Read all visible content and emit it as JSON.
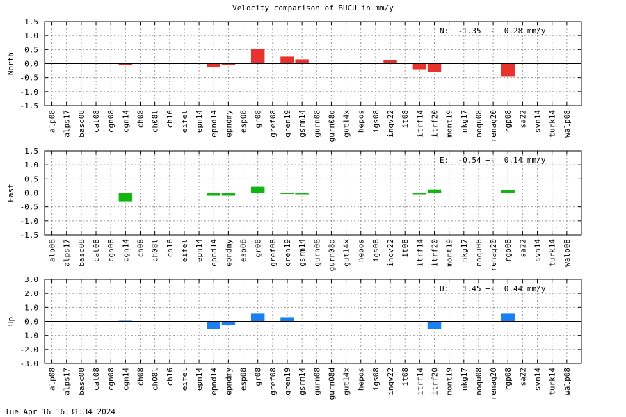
{
  "title": "Velocity comparison of BUCU in mm/y",
  "footer": "Tue Apr 16 16:31:34 2024",
  "chart_data": [
    {
      "type": "bar",
      "ylabel": "North",
      "color": "#e8322e",
      "ylim": [
        -1.5,
        1.5
      ],
      "yticks": [
        "1.5",
        "1.0",
        "0.5",
        "0.0",
        "-0.5",
        "-1.0",
        "-1.5"
      ],
      "annotation": "N:  -1.35 +-  0.28 mm/y",
      "grid": true,
      "categories": [
        "alp08",
        "alps17",
        "basc08",
        "cat08",
        "cgn08",
        "cgn14",
        "ch08",
        "ch08l",
        "ch16",
        "eifel",
        "epn14",
        "epnd14",
        "epndmy",
        "esp08",
        "gr08",
        "gref08",
        "gren19",
        "gsrm14",
        "gurn08",
        "gurn08d",
        "gut14x",
        "hepos",
        "igs08",
        "ingv22",
        "it08",
        "itrf14",
        "itrf20",
        "mont19",
        "nkg17",
        "noqu08",
        "renag20",
        "rgp08",
        "sa22",
        "svn14",
        "turk14",
        "walp08"
      ],
      "values": [
        0,
        0,
        0,
        0,
        0,
        -0.02,
        0,
        0,
        0,
        0,
        0,
        -0.12,
        -0.05,
        0,
        0.52,
        0,
        0.25,
        0.15,
        0,
        0,
        0,
        0,
        0,
        0.12,
        0,
        -0.2,
        -0.3,
        0,
        0,
        0,
        0,
        -0.47,
        0,
        0,
        0,
        0
      ]
    },
    {
      "type": "bar",
      "ylabel": "East",
      "color": "#12b512",
      "ylim": [
        -1.5,
        1.5
      ],
      "yticks": [
        "1.5",
        "1.0",
        "0.5",
        "0.0",
        "-0.5",
        "-1.0",
        "-1.5"
      ],
      "annotation": "E:  -0.54 +-  0.14 mm/y",
      "grid": true,
      "categories": [
        "alp08",
        "alps17",
        "basc08",
        "cat08",
        "cgn08",
        "cgn14",
        "ch08",
        "ch08l",
        "ch16",
        "eifel",
        "epn14",
        "epnd14",
        "epndmy",
        "esp08",
        "gr08",
        "gref08",
        "gren19",
        "gsrm14",
        "gurn08",
        "gurn08d",
        "gut14x",
        "hepos",
        "igs08",
        "ingv22",
        "it08",
        "itrf14",
        "itrf20",
        "mont19",
        "nkg17",
        "noqu08",
        "renag20",
        "rgp08",
        "sa22",
        "svn14",
        "turk14",
        "walp08"
      ],
      "values": [
        0,
        0,
        0,
        0,
        0,
        -0.3,
        0,
        0,
        0,
        0,
        0,
        -0.1,
        -0.1,
        0,
        0.22,
        0,
        -0.03,
        -0.05,
        0,
        0,
        0,
        0,
        0,
        0,
        0,
        -0.05,
        0.12,
        0,
        0,
        0,
        0,
        0.1,
        0,
        0,
        0,
        0
      ]
    },
    {
      "type": "bar",
      "ylabel": "Up",
      "color": "#1a7ff0",
      "ylim": [
        -3.0,
        3.0
      ],
      "yticks": [
        "3.0",
        "2.0",
        "1.0",
        "0.0",
        "-1.0",
        "-2.0",
        "-3.0"
      ],
      "annotation": "U:   1.45 +-  0.44 mm/y",
      "grid": true,
      "categories": [
        "alp08",
        "alps17",
        "basc08",
        "cat08",
        "cgn08",
        "cgn14",
        "ch08",
        "ch08l",
        "ch16",
        "eifel",
        "epn14",
        "epnd14",
        "epndmy",
        "esp08",
        "gr08",
        "gref08",
        "gren19",
        "gsrm14",
        "gurn08",
        "gurn08d",
        "gut14x",
        "hepos",
        "igs08",
        "ingv22",
        "it08",
        "itrf14",
        "itrf20",
        "mont19",
        "nkg17",
        "noqu08",
        "renag20",
        "rgp08",
        "sa22",
        "svn14",
        "turk14",
        "walp08"
      ],
      "values": [
        0,
        0,
        0,
        0,
        0,
        0.05,
        0,
        0,
        0,
        0,
        0,
        -0.55,
        -0.27,
        0,
        0.55,
        0,
        0.3,
        0,
        0,
        0,
        0,
        0,
        0,
        -0.07,
        0,
        -0.05,
        -0.55,
        0,
        0,
        0,
        0,
        0.55,
        0,
        0,
        0,
        0
      ]
    }
  ]
}
